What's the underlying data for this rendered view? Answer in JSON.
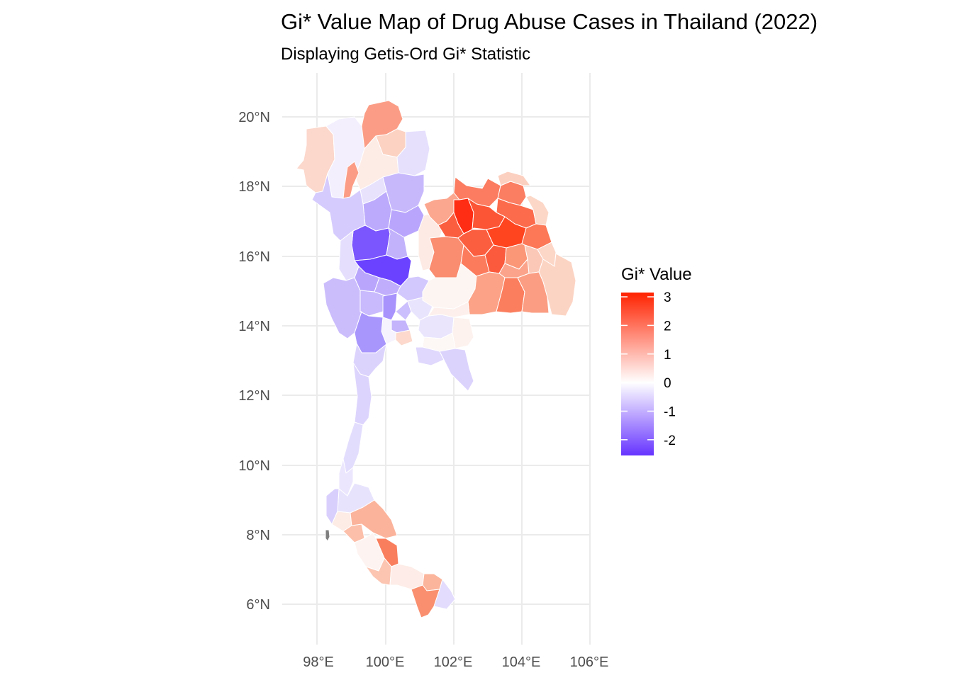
{
  "title": "Gi* Value Map of Drug Abuse Cases in Thailand (2022)",
  "subtitle": "Displaying Getis-Ord Gi* Statistic",
  "axes": {
    "x_ticks": [
      "98°E",
      "100°E",
      "102°E",
      "104°E",
      "106°E"
    ],
    "y_ticks": [
      "20°N",
      "18°N",
      "16°N",
      "14°N",
      "12°N",
      "10°N",
      "8°N",
      "6°N"
    ]
  },
  "legend": {
    "title": "Gi* Value",
    "labels": [
      "3",
      "2",
      "1",
      "0",
      "-1",
      "-2"
    ],
    "max": 3.15,
    "min": -2.55,
    "colors": {
      "high": "#ff2200",
      "mid": "#ffffff",
      "low": "#6633ff"
    }
  },
  "na_color": "#7f7f7f"
}
